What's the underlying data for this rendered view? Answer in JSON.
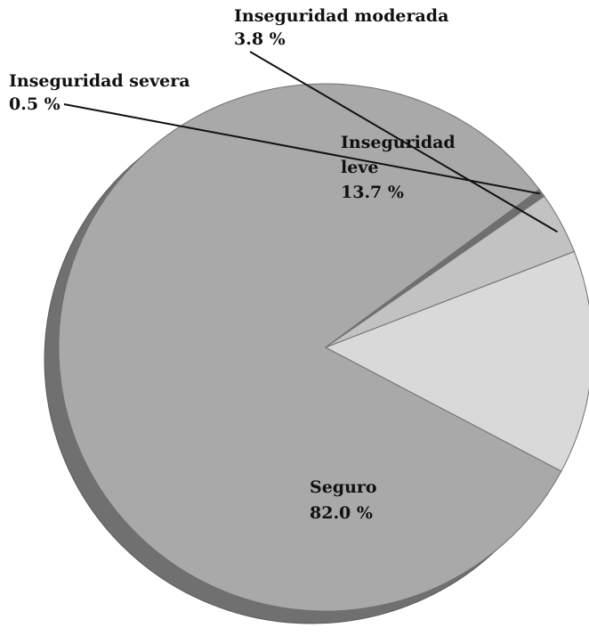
{
  "chart_data": {
    "type": "pie",
    "title": "",
    "slices": [
      {
        "label": "Seguro",
        "value_text": "82.0 %",
        "value": 82.0,
        "color": "#a9a9a9"
      },
      {
        "label": "Inseguridad severa",
        "value_text": "0.5 %",
        "value": 0.5,
        "color": "#6f6f6f"
      },
      {
        "label": "Inseguridad moderada",
        "value_text": "3.8 %",
        "value": 3.8,
        "color": "#c2c2c2"
      },
      {
        "label": "Inseguridad leve",
        "label_lines": [
          "Inseguridad",
          "leve"
        ],
        "value_text": "13.7 %",
        "value": 13.7,
        "color": "#d9d9d9"
      }
    ],
    "depth_color": "#707070",
    "legend": "none"
  }
}
